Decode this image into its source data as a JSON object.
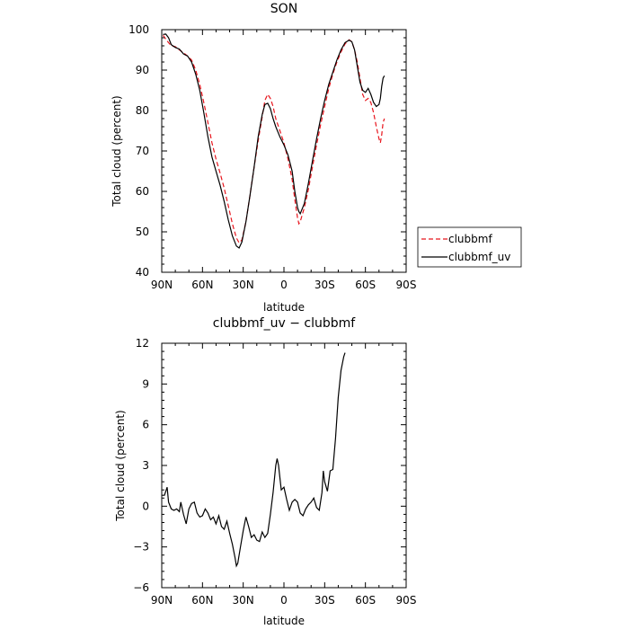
{
  "chart_data": [
    {
      "type": "line",
      "title": "SON",
      "xlabel": "latitude",
      "ylabel": "Total cloud (percent)",
      "xlim": [
        -90,
        90
      ],
      "ylim": [
        40,
        100
      ],
      "x_reversed": true,
      "x_ticks": [
        -90,
        -60,
        -30,
        0,
        30,
        60,
        90
      ],
      "x_tick_labels": [
        "90N",
        "60N",
        "30N",
        "0",
        "30S",
        "60S",
        "90S"
      ],
      "y_ticks": [
        40,
        50,
        60,
        70,
        80,
        90,
        100
      ],
      "y_tick_labels": [
        "40",
        "50",
        "60",
        "70",
        "80",
        "90",
        "100"
      ],
      "grid": false,
      "legend_position": "right",
      "series": [
        {
          "name": "clubbmf",
          "color": "#e8141c",
          "dash": "dashed",
          "points": [
            [
              -89,
              98.6
            ],
            [
              -86,
              97.2
            ],
            [
              -83,
              96.0
            ],
            [
              -80,
              95.8
            ],
            [
              -77,
              95.0
            ],
            [
              -74,
              94.3
            ],
            [
              -71,
              93.5
            ],
            [
              -68,
              92.5
            ],
            [
              -65,
              90.0
            ],
            [
              -62,
              86.5
            ],
            [
              -59,
              82.0
            ],
            [
              -56,
              77.0
            ],
            [
              -53,
              72.0
            ],
            [
              -50,
              68.0
            ],
            [
              -47,
              64.5
            ],
            [
              -44,
              60.8
            ],
            [
              -41,
              56.5
            ],
            [
              -38,
              52.0
            ],
            [
              -35,
              48.5
            ],
            [
              -33,
              47.3
            ],
            [
              -31,
              48.0
            ],
            [
              -28,
              52.5
            ],
            [
              -25,
              59.0
            ],
            [
              -22,
              66.0
            ],
            [
              -19,
              72.5
            ],
            [
              -16,
              78.5
            ],
            [
              -14,
              82.5
            ],
            [
              -12,
              84.0
            ],
            [
              -10,
              83.0
            ],
            [
              -8,
              81.0
            ],
            [
              -6,
              78.0
            ],
            [
              -3,
              75.0
            ],
            [
              0,
              72.0
            ],
            [
              3,
              68.0
            ],
            [
              6,
              63.0
            ],
            [
              8,
              58.0
            ],
            [
              10,
              53.5
            ],
            [
              11,
              52.0
            ],
            [
              12,
              52.5
            ],
            [
              15,
              56.0
            ],
            [
              18,
              60.5
            ],
            [
              21,
              66.0
            ],
            [
              24,
              71.5
            ],
            [
              27,
              76.5
            ],
            [
              30,
              81.0
            ],
            [
              33,
              85.5
            ],
            [
              36,
              89.0
            ],
            [
              39,
              92.0
            ],
            [
              42,
              94.5
            ],
            [
              45,
              96.5
            ],
            [
              48,
              97.5
            ],
            [
              50,
              97.0
            ],
            [
              52,
              95.0
            ],
            [
              54,
              92.0
            ],
            [
              56,
              88.0
            ],
            [
              58,
              84.0
            ],
            [
              60,
              82.5
            ],
            [
              62,
              83.0
            ],
            [
              64,
              82.0
            ],
            [
              66,
              79.5
            ],
            [
              68,
              76.0
            ],
            [
              70,
              73.0
            ],
            [
              71,
              72.0
            ],
            [
              72,
              74.0
            ],
            [
              73,
              77.0
            ],
            [
              74,
              78.0
            ]
          ]
        },
        {
          "name": "clubbmf_uv",
          "color": "#000000",
          "dash": "solid",
          "points": [
            [
              -89,
              98.8
            ],
            [
              -87,
              98.9
            ],
            [
              -85,
              98.0
            ],
            [
              -83,
              96.3
            ],
            [
              -80,
              95.6
            ],
            [
              -77,
              95.2
            ],
            [
              -74,
              94.0
            ],
            [
              -71,
              93.5
            ],
            [
              -68,
              92.0
            ],
            [
              -65,
              89.0
            ],
            [
              -62,
              85.0
            ],
            [
              -59,
              79.5
            ],
            [
              -56,
              73.5
            ],
            [
              -53,
              68.5
            ],
            [
              -50,
              65.0
            ],
            [
              -47,
              61.5
            ],
            [
              -44,
              57.5
            ],
            [
              -41,
              53.0
            ],
            [
              -38,
              49.0
            ],
            [
              -35,
              46.5
            ],
            [
              -33,
              46.0
            ],
            [
              -31,
              47.5
            ],
            [
              -28,
              52.5
            ],
            [
              -25,
              59.0
            ],
            [
              -22,
              66.0
            ],
            [
              -19,
              73.5
            ],
            [
              -16,
              79.0
            ],
            [
              -14,
              81.5
            ],
            [
              -12,
              81.8
            ],
            [
              -10,
              80.5
            ],
            [
              -8,
              78.0
            ],
            [
              -6,
              76.0
            ],
            [
              -3,
              73.5
            ],
            [
              0,
              71.5
            ],
            [
              3,
              69.0
            ],
            [
              6,
              65.0
            ],
            [
              8,
              60.0
            ],
            [
              10,
              56.0
            ],
            [
              11,
              55.0
            ],
            [
              12,
              54.5
            ],
            [
              15,
              57.0
            ],
            [
              18,
              62.0
            ],
            [
              21,
              67.5
            ],
            [
              24,
              73.0
            ],
            [
              27,
              78.0
            ],
            [
              30,
              82.5
            ],
            [
              33,
              86.5
            ],
            [
              36,
              89.5
            ],
            [
              39,
              92.5
            ],
            [
              42,
              95.0
            ],
            [
              45,
              96.8
            ],
            [
              48,
              97.4
            ],
            [
              50,
              97.0
            ],
            [
              52,
              95.0
            ],
            [
              54,
              91.0
            ],
            [
              56,
              87.0
            ],
            [
              58,
              85.0
            ],
            [
              60,
              84.5
            ],
            [
              62,
              85.5
            ],
            [
              64,
              84.0
            ],
            [
              66,
              82.0
            ],
            [
              68,
              81.0
            ],
            [
              70,
              81.5
            ],
            [
              71,
              83.0
            ],
            [
              72,
              86.0
            ],
            [
              73,
              88.0
            ],
            [
              74,
              88.6
            ]
          ]
        }
      ]
    },
    {
      "type": "line",
      "title": "clubbmf_uv − clubbmf",
      "xlabel": "latitude",
      "ylabel": "Total cloud (percent)",
      "xlim": [
        -90,
        90
      ],
      "ylim": [
        -6,
        12
      ],
      "x_reversed": true,
      "x_ticks": [
        -90,
        -60,
        -30,
        0,
        30,
        60,
        90
      ],
      "x_tick_labels": [
        "90N",
        "60N",
        "30N",
        "0",
        "30S",
        "60S",
        "90S"
      ],
      "y_ticks": [
        -6,
        -3,
        0,
        3,
        6,
        9,
        12
      ],
      "y_tick_labels": [
        "−6",
        "−3",
        "0",
        "3",
        "6",
        "9",
        "12"
      ],
      "grid": false,
      "series": [
        {
          "color": "#000000",
          "dash": "solid",
          "points": [
            [
              -90,
              0.8
            ],
            [
              -88,
              0.8
            ],
            [
              -86,
              1.4
            ],
            [
              -85,
              0.3
            ],
            [
              -83,
              -0.2
            ],
            [
              -81,
              -0.3
            ],
            [
              -79,
              -0.2
            ],
            [
              -77,
              -0.4
            ],
            [
              -76,
              0.3
            ],
            [
              -74,
              -0.6
            ],
            [
              -72,
              -1.3
            ],
            [
              -70,
              -0.2
            ],
            [
              -68,
              0.2
            ],
            [
              -66,
              0.3
            ],
            [
              -64,
              -0.5
            ],
            [
              -62,
              -0.8
            ],
            [
              -60,
              -0.7
            ],
            [
              -58,
              -0.2
            ],
            [
              -56,
              -0.5
            ],
            [
              -54,
              -1.0
            ],
            [
              -52,
              -0.8
            ],
            [
              -50,
              -1.3
            ],
            [
              -48,
              -0.7
            ],
            [
              -46,
              -1.5
            ],
            [
              -44,
              -1.7
            ],
            [
              -42,
              -1.1
            ],
            [
              -40,
              -2.0
            ],
            [
              -38,
              -2.8
            ],
            [
              -36,
              -3.8
            ],
            [
              -35,
              -4.4
            ],
            [
              -34,
              -4.2
            ],
            [
              -32,
              -3.0
            ],
            [
              -30,
              -1.8
            ],
            [
              -28,
              -0.8
            ],
            [
              -26,
              -1.5
            ],
            [
              -24,
              -2.3
            ],
            [
              -22,
              -2.1
            ],
            [
              -20,
              -2.5
            ],
            [
              -18,
              -2.6
            ],
            [
              -16,
              -1.9
            ],
            [
              -14,
              -2.3
            ],
            [
              -12,
              -2.0
            ],
            [
              -10,
              -0.6
            ],
            [
              -8,
              1.0
            ],
            [
              -6,
              3.0
            ],
            [
              -5,
              3.5
            ],
            [
              -4,
              3.0
            ],
            [
              -2,
              1.2
            ],
            [
              0,
              1.4
            ],
            [
              2,
              0.5
            ],
            [
              4,
              -0.3
            ],
            [
              6,
              0.3
            ],
            [
              8,
              0.5
            ],
            [
              10,
              0.3
            ],
            [
              12,
              -0.5
            ],
            [
              14,
              -0.7
            ],
            [
              16,
              -0.2
            ],
            [
              18,
              0.1
            ],
            [
              20,
              0.3
            ],
            [
              22,
              0.6
            ],
            [
              24,
              -0.1
            ],
            [
              26,
              -0.3
            ],
            [
              28,
              1.0
            ],
            [
              29,
              2.6
            ],
            [
              30,
              1.8
            ],
            [
              32,
              1.1
            ],
            [
              34,
              2.6
            ],
            [
              36,
              2.7
            ],
            [
              38,
              5.0
            ],
            [
              40,
              8.0
            ],
            [
              42,
              10.0
            ],
            [
              44,
              11.0
            ],
            [
              45,
              11.3
            ]
          ]
        }
      ]
    }
  ]
}
